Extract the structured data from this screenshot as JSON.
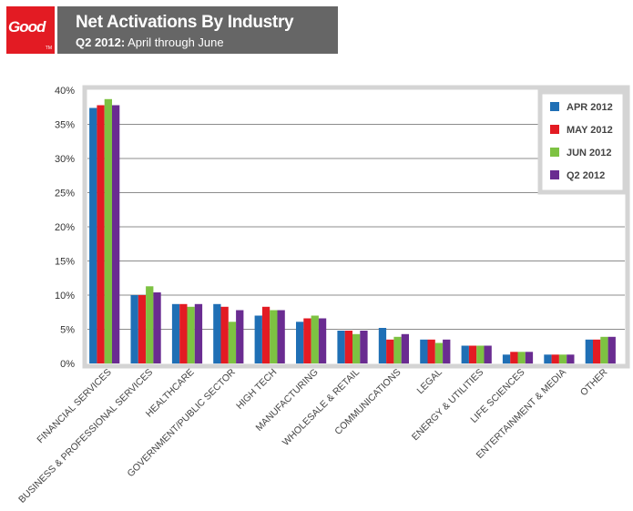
{
  "brand": {
    "logo_text": "Good",
    "logo_mark": "TM",
    "color": "#e31b23"
  },
  "header": {
    "title": "Net Activations By Industry",
    "subtitle_bold": "Q2 2012:",
    "subtitle_rest": " April through June"
  },
  "chart_data": {
    "type": "bar",
    "categories": [
      "FINANCIAL SERVICES",
      "BUSINESS & PROFESSIONAL SERVICES",
      "HEALTHCARE",
      "GOVERNMENT/PUBLIC SECTOR",
      "HIGH TECH",
      "MANUFACTURING",
      "WHOLESALE & RETAIL",
      "COMMUNICATIONS",
      "LEGAL",
      "ENERGY & UTILITIES",
      "LIFE SCIENCES",
      "ENTERTAINMENT & MEDIA",
      "OTHER"
    ],
    "series": [
      {
        "name": "APR 2012",
        "color": "#1f6fb5",
        "values": [
          37.4,
          10.0,
          8.7,
          8.7,
          7.0,
          6.1,
          4.8,
          5.2,
          3.5,
          2.6,
          1.3,
          1.3,
          3.5
        ]
      },
      {
        "name": "MAY 2012",
        "color": "#e31b23",
        "values": [
          37.8,
          10.0,
          8.7,
          8.3,
          8.3,
          6.6,
          4.8,
          3.5,
          3.5,
          2.6,
          1.7,
          1.3,
          3.5
        ]
      },
      {
        "name": "JUN 2012",
        "color": "#7dc242",
        "values": [
          38.7,
          11.3,
          8.3,
          6.1,
          7.8,
          7.0,
          4.3,
          3.9,
          3.0,
          2.6,
          1.7,
          1.3,
          3.9
        ]
      },
      {
        "name": "Q2 2012",
        "color": "#6a2c91",
        "values": [
          37.8,
          10.4,
          8.7,
          7.8,
          7.8,
          6.6,
          4.8,
          4.3,
          3.5,
          2.6,
          1.7,
          1.3,
          3.9
        ]
      }
    ],
    "y_ticks": [
      "0%",
      "5%",
      "10%",
      "15%",
      "20%",
      "25%",
      "30%",
      "35%",
      "40%"
    ],
    "ylim": [
      0,
      40
    ],
    "grid": true,
    "legend_position": "top-right"
  }
}
